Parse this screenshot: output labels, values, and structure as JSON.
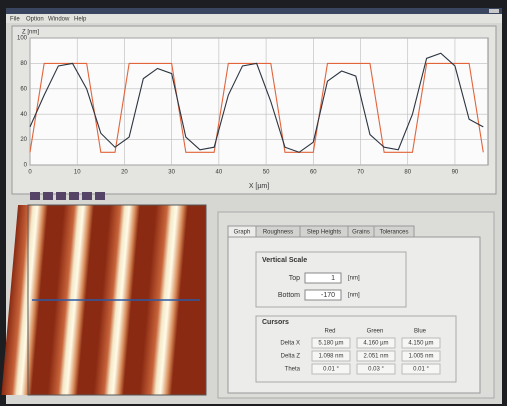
{
  "window": {
    "menu": [
      "File",
      "Option",
      "Window",
      "Help"
    ]
  },
  "chart_data": {
    "type": "line",
    "y_label": "Z [nm]",
    "x_label": "X [µm]",
    "x": [
      0,
      3,
      6,
      9,
      12,
      15,
      18,
      21,
      24,
      27,
      30,
      33,
      36,
      39,
      42,
      45,
      48,
      51,
      54,
      57,
      60,
      63,
      66,
      69,
      72,
      75,
      78,
      81,
      84,
      87,
      90,
      93,
      96
    ],
    "series": [
      {
        "color": "#e2643a",
        "values": [
          10,
          80,
          80,
          80,
          80,
          10,
          10,
          80,
          80,
          80,
          80,
          10,
          10,
          10,
          80,
          80,
          80,
          80,
          10,
          10,
          10,
          80,
          80,
          80,
          80,
          10,
          10,
          10,
          80,
          80,
          80,
          80,
          10
        ]
      },
      {
        "color": "#2c3440",
        "values": [
          30,
          55,
          78,
          80,
          60,
          25,
          14,
          22,
          68,
          76,
          72,
          22,
          12,
          14,
          55,
          78,
          80,
          50,
          14,
          10,
          18,
          66,
          74,
          70,
          24,
          14,
          12,
          40,
          84,
          88,
          78,
          36,
          30
        ]
      }
    ],
    "xlim": [
      0,
      97
    ],
    "xticks": [
      0,
      10,
      20,
      30,
      40,
      50,
      60,
      70,
      80,
      90
    ],
    "ylim": [
      0,
      100
    ],
    "yticks": [
      0,
      20,
      40,
      60,
      80,
      100
    ],
    "grid": true
  },
  "tabs": [
    "Graph",
    "Roughness",
    "Step Heights",
    "Grains",
    "Tolerances"
  ],
  "vertical_scale": {
    "title": "Vertical Scale",
    "top_label": "Top",
    "top_value": "1",
    "top_unit": "[nm]",
    "bottom_label": "Bottom",
    "bottom_value": "-170",
    "bottom_unit": "[nm]"
  },
  "cursors": {
    "title": "Cursors",
    "columns": [
      "Red",
      "Green",
      "Blue"
    ],
    "rows": [
      {
        "label": "Delta X",
        "cells": [
          "5.180 µm",
          "4.160 µm",
          "4.150 µm"
        ]
      },
      {
        "label": "Delta Z",
        "cells": [
          "1.098 nm",
          "2.051 nm",
          "1.005 nm"
        ]
      },
      {
        "label": "Theta",
        "cells": [
          "0.01 °",
          "0.03 °",
          "0.01 °"
        ]
      }
    ]
  }
}
